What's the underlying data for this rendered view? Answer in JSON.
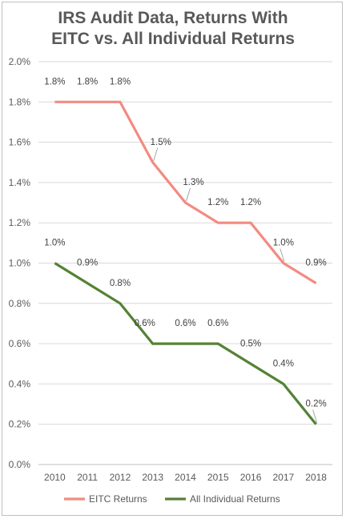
{
  "chart_data": {
    "type": "line",
    "title_lines": [
      "IRS Audit Data, Returns With",
      "EITC vs. All Individual Returns"
    ],
    "xlabel": "",
    "ylabel": "",
    "x": [
      "2010",
      "2011",
      "2012",
      "2013",
      "2014",
      "2015",
      "2016",
      "2017",
      "2018"
    ],
    "ylim": [
      0,
      2.0
    ],
    "y_ticks": [
      "0.0%",
      "0.2%",
      "0.4%",
      "0.6%",
      "0.8%",
      "1.0%",
      "1.2%",
      "1.4%",
      "1.6%",
      "1.8%",
      "2.0%"
    ],
    "grid": true,
    "legend_position": "bottom",
    "series": [
      {
        "name": "EITC Returns",
        "color": "#f28b82",
        "values": [
          1.8,
          1.8,
          1.8,
          1.5,
          1.3,
          1.2,
          1.2,
          1.0,
          0.9
        ],
        "labels": [
          "1.8%",
          "1.8%",
          "1.8%",
          "1.5%",
          "1.3%",
          "1.2%",
          "1.2%",
          "1.0%",
          "0.9%"
        ]
      },
      {
        "name": "All Individual Returns",
        "color": "#548235",
        "values": [
          1.0,
          0.9,
          0.8,
          0.6,
          0.6,
          0.6,
          0.5,
          0.4,
          0.2
        ],
        "labels": [
          "1.0%",
          "0.9%",
          "0.8%",
          "0.6%",
          "0.6%",
          "0.6%",
          "0.5%",
          "0.4%",
          "0.2%"
        ]
      }
    ]
  }
}
